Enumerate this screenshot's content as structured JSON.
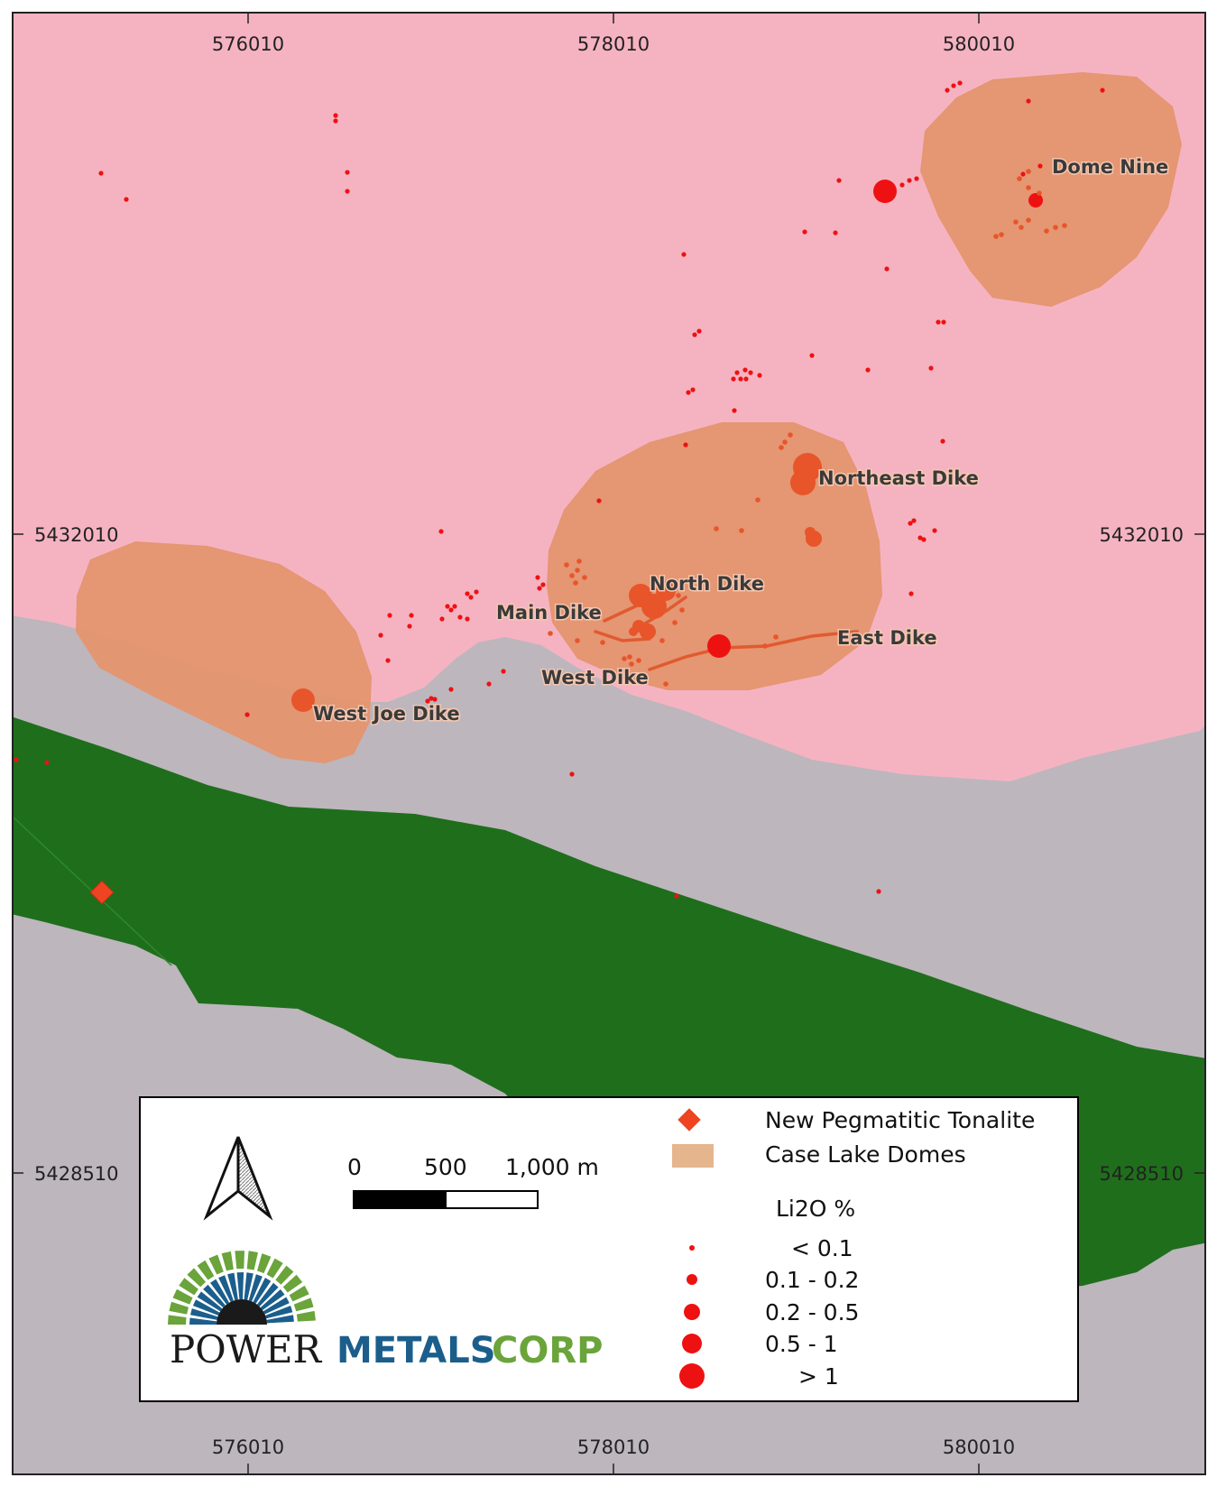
{
  "map": {
    "grid": {
      "x_labels_top": [
        "576010",
        "578010",
        "580010"
      ],
      "x_labels_bottom": [
        "576010",
        "578010",
        "580010"
      ],
      "y_labels_left": [
        "5432010",
        "5428510"
      ],
      "y_labels_right": [
        "5432010",
        "5428510"
      ]
    },
    "features": {
      "dome_nine": "Dome Nine",
      "northeast_dike": "Northeast Dike",
      "north_dike": "North Dike",
      "main_dike": "Main Dike",
      "east_dike": "East Dike",
      "west_dike": "West Dike",
      "west_joe_dike": "West Joe Dike"
    },
    "colors": {
      "pink_unit": "#f5b3c2",
      "grey_unit": "#bdb6bd",
      "green_unit": "#1f6e1c",
      "domes": "#e4956e",
      "samples": "#ee1111",
      "tonalite": "#ee4422"
    }
  },
  "legend": {
    "scale_bar": {
      "ticks": [
        "0",
        "500",
        "1,000 m"
      ]
    },
    "items": {
      "tonalite": "New Pegmatitic Tonalite",
      "domes": "Case Lake Domes"
    },
    "li2o_title": "Li2O %",
    "li2o_classes": [
      "< 0.1",
      "0.1 - 0.2",
      "0.2 - 0.5",
      "0.5 - 1",
      "> 1"
    ],
    "north_arrow_icon": "north-arrow-icon"
  },
  "logo": {
    "word1": "POWER",
    "word2": "METALS",
    "word3": "CORP",
    "colors": {
      "blue": "#1b5e8c",
      "green": "#6aa43a"
    }
  }
}
